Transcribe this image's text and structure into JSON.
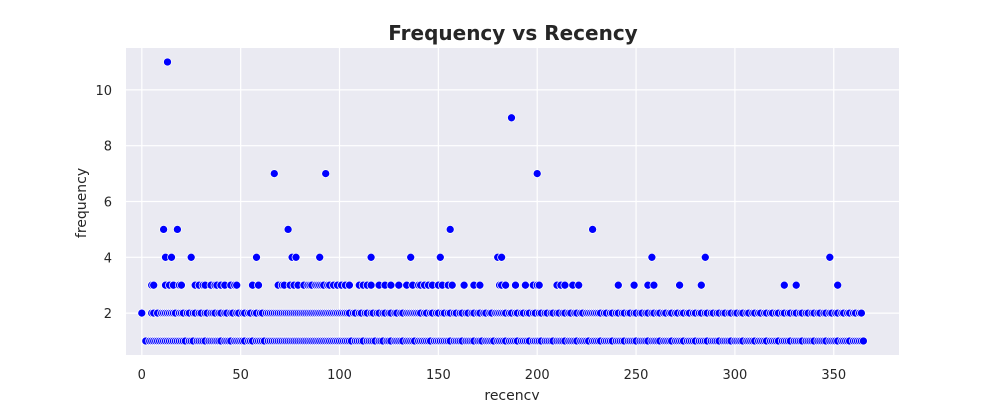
{
  "chart_data": {
    "type": "scatter",
    "title": "Frequency vs Recency",
    "xlabel": "recency",
    "ylabel": "frequency",
    "xlim": [
      -8,
      383
    ],
    "ylim": [
      0.5,
      11.5
    ],
    "xticks": [
      0,
      50,
      100,
      150,
      200,
      250,
      300,
      350
    ],
    "yticks": [
      2,
      4,
      6,
      8,
      10
    ],
    "grid": true,
    "colors": {
      "background": "#EAEAF2",
      "grid": "#FFFFFF",
      "point": "#0000FF",
      "point_edge": "#FFFFFF"
    },
    "series": [
      {
        "frequency": 1,
        "recency": [
          2,
          4,
          5,
          6,
          7,
          8,
          9,
          10,
          11,
          12,
          13,
          14,
          15,
          16,
          17,
          18,
          19,
          20,
          21,
          22,
          24,
          25,
          26,
          28,
          29,
          30,
          31,
          32,
          34,
          35,
          36,
          37,
          38,
          39,
          40,
          42,
          43,
          44,
          45,
          47,
          48,
          49,
          50,
          51,
          52,
          54,
          55,
          56,
          58,
          59,
          60,
          61,
          62,
          64,
          65,
          66,
          67,
          68,
          69,
          70,
          71,
          72,
          73,
          74,
          75,
          76,
          77,
          78,
          79,
          80,
          81,
          82,
          83,
          84,
          85,
          86,
          87,
          88,
          89,
          90,
          91,
          92,
          93,
          94,
          95,
          96,
          97,
          98,
          99,
          100,
          101,
          102,
          103,
          104,
          105,
          106,
          108,
          109,
          110,
          111,
          112,
          114,
          115,
          116,
          117,
          118,
          120,
          121,
          122,
          124,
          125,
          126,
          128,
          129,
          130,
          131,
          132,
          134,
          135,
          136,
          137,
          138,
          140,
          141,
          142,
          143,
          144,
          145,
          146,
          148,
          149,
          150,
          151,
          152,
          153,
          154,
          155,
          156,
          158,
          159,
          160,
          161,
          162,
          164,
          165,
          166,
          167,
          168,
          170,
          171,
          172,
          174,
          175,
          176,
          177,
          178,
          180,
          181,
          182,
          183,
          184,
          186,
          187,
          188,
          189,
          190,
          192,
          193,
          194,
          195,
          196,
          198,
          199,
          200,
          201,
          202,
          204,
          205,
          206,
          207,
          208,
          210,
          211,
          212,
          213,
          214,
          216,
          217,
          218,
          219,
          220,
          222,
          223,
          224,
          225,
          226,
          228,
          229,
          230,
          231,
          232,
          234,
          235,
          236,
          237,
          238,
          240,
          241,
          242,
          243,
          244,
          246,
          247,
          248,
          249,
          250,
          252,
          253,
          254,
          255,
          256,
          258,
          259,
          260,
          261,
          262,
          264,
          265,
          266,
          267,
          268,
          270,
          271,
          272,
          273,
          274,
          276,
          277,
          278,
          279,
          280,
          282,
          283,
          284,
          285,
          286,
          288,
          289,
          290,
          291,
          292,
          294,
          295,
          296,
          297,
          298,
          300,
          301,
          302,
          303,
          304,
          306,
          307,
          308,
          309,
          310,
          312,
          313,
          314,
          315,
          316,
          318,
          319,
          320,
          321,
          322,
          324,
          325,
          326,
          327,
          328,
          330,
          331,
          332,
          333,
          334,
          336,
          337,
          338,
          339,
          340,
          342,
          343,
          344,
          345,
          346,
          348,
          349,
          350,
          351,
          352,
          354,
          355,
          356,
          357,
          358,
          360,
          361,
          362,
          363,
          364,
          365
        ]
      },
      {
        "frequency": 2,
        "recency": [
          0,
          5,
          6,
          8,
          10,
          11,
          12,
          13,
          14,
          15,
          16,
          17,
          19,
          20,
          21,
          23,
          24,
          26,
          27,
          29,
          30,
          32,
          33,
          35,
          36,
          37,
          39,
          40,
          42,
          43,
          45,
          46,
          48,
          49,
          51,
          52,
          54,
          55,
          57,
          58,
          60,
          61,
          63,
          64,
          65,
          66,
          67,
          68,
          69,
          70,
          71,
          72,
          73,
          74,
          75,
          76,
          77,
          78,
          79,
          80,
          81,
          82,
          83,
          84,
          85,
          86,
          87,
          88,
          89,
          90,
          91,
          92,
          93,
          94,
          95,
          96,
          97,
          98,
          99,
          100,
          101,
          102,
          103,
          104,
          105,
          107,
          108,
          110,
          111,
          113,
          114,
          116,
          117,
          119,
          120,
          122,
          123,
          125,
          126,
          128,
          129,
          131,
          132,
          134,
          135,
          136,
          137,
          138,
          139,
          140,
          141,
          143,
          144,
          146,
          147,
          149,
          150,
          152,
          153,
          155,
          156,
          158,
          159,
          161,
          162,
          164,
          165,
          167,
          168,
          170,
          171,
          173,
          174,
          176,
          177,
          179,
          180,
          181,
          182,
          183,
          184,
          186,
          187,
          189,
          190,
          192,
          193,
          195,
          196,
          198,
          199,
          201,
          202,
          204,
          205,
          207,
          208,
          210,
          211,
          213,
          214,
          216,
          217,
          219,
          220,
          222,
          223,
          225,
          226,
          227,
          228,
          229,
          230,
          231,
          232,
          234,
          235,
          237,
          238,
          240,
          241,
          243,
          244,
          246,
          247,
          249,
          250,
          252,
          253,
          255,
          256,
          258,
          259,
          261,
          262,
          264,
          265,
          267,
          268,
          270,
          271,
          273,
          274,
          276,
          277,
          279,
          280,
          282,
          283,
          285,
          286,
          288,
          289,
          291,
          292,
          294,
          295,
          297,
          298,
          300,
          301,
          303,
          304,
          306,
          307,
          309,
          310,
          312,
          313,
          315,
          316,
          318,
          319,
          321,
          322,
          324,
          325,
          327,
          328,
          330,
          331,
          333,
          334,
          336,
          337,
          339,
          340,
          342,
          343,
          345,
          346,
          348,
          349,
          351,
          352,
          354,
          355,
          357,
          358,
          360,
          361,
          363,
          364
        ]
      },
      {
        "frequency": 3,
        "recency": [
          5,
          6,
          12,
          14,
          16,
          19,
          20,
          27,
          29,
          31,
          32,
          35,
          37,
          38,
          40,
          42,
          45,
          47,
          48,
          56,
          59,
          69,
          71,
          72,
          75,
          77,
          79,
          82,
          84,
          85,
          86,
          88,
          89,
          90,
          91,
          92,
          94,
          95,
          97,
          99,
          101,
          103,
          105,
          110,
          112,
          114,
          116,
          120,
          123,
          126,
          130,
          134,
          137,
          140,
          141,
          143,
          145,
          147,
          150,
          152,
          155,
          157,
          163,
          168,
          171,
          181,
          182,
          184,
          189,
          194,
          198,
          200,
          201,
          210,
          212,
          214,
          218,
          221,
          241,
          249,
          256,
          259,
          272,
          283,
          325,
          331,
          352
        ]
      },
      {
        "frequency": 4,
        "recency": [
          12,
          15,
          25,
          58,
          76,
          78,
          90,
          116,
          136,
          151,
          180,
          182,
          258,
          285,
          348
        ]
      },
      {
        "frequency": 5,
        "recency": [
          11,
          18,
          74,
          156,
          228
        ]
      },
      {
        "frequency": 7,
        "recency": [
          67,
          93,
          200
        ]
      },
      {
        "frequency": 9,
        "recency": [
          187
        ]
      },
      {
        "frequency": 11,
        "recency": [
          13
        ]
      }
    ]
  }
}
